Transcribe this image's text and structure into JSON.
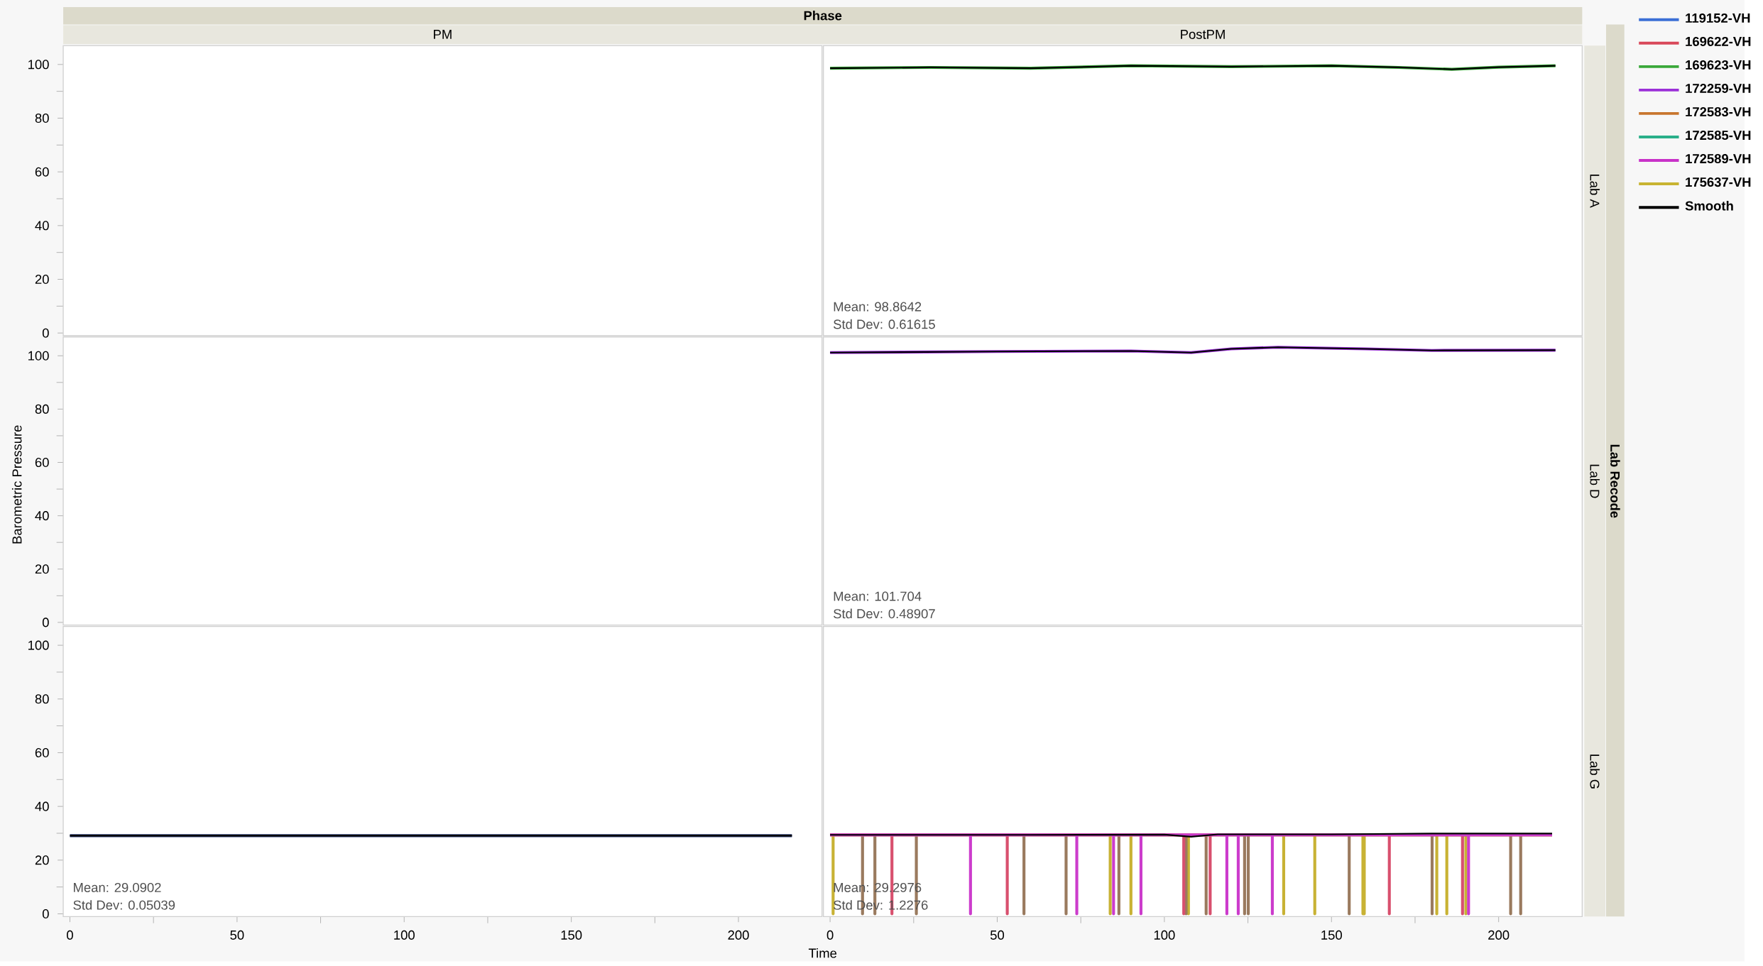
{
  "chart_data": [
    {
      "type": "line",
      "xlim": [
        -2,
        225
      ],
      "ylim": [
        -1,
        107
      ],
      "xticks": [
        0,
        50,
        100,
        150,
        200
      ],
      "yticks": [
        0,
        20,
        40,
        60,
        80,
        100
      ],
      "tick_labels": "y"
    },
    {
      "type": "line",
      "xlim": [
        -2,
        225
      ],
      "ylim": [
        -1,
        107
      ],
      "xticks": [
        0,
        50,
        100,
        150,
        200
      ],
      "yticks": [
        0,
        20,
        40,
        60,
        80,
        100
      ],
      "tick_labels": false,
      "legend": "top right",
      "annotations": [
        "Mean: 98.8642",
        "Std Dev: 0.61615"
      ],
      "series": [
        {
          "name": "119152-VH",
          "color": "#3b6fd6",
          "values": [
            null
          ]
        },
        {
          "name": "169622-VH",
          "color": "#d9485a",
          "values": [
            null
          ]
        },
        {
          "name": "169623-VH",
          "color": "#3aa83a",
          "x": [
            0,
            30,
            60,
            90,
            120,
            150,
            170,
            186,
            200,
            217
          ],
          "values": [
            98.6,
            98.9,
            98.6,
            99.5,
            99.2,
            99.5,
            98.9,
            98.2,
            99.0,
            99.5
          ]
        },
        {
          "name": "172259-VH",
          "color": "#9b30d8",
          "values": [
            null
          ]
        },
        {
          "name": "172583-VH",
          "color": "#c8762e",
          "values": [
            null
          ]
        },
        {
          "name": "172585-VH",
          "color": "#2ab08a",
          "values": [
            null
          ]
        },
        {
          "name": "172589-VH",
          "color": "#c832c8",
          "values": [
            null
          ]
        },
        {
          "name": "175637-VH",
          "color": "#c8b432",
          "values": [
            null
          ]
        },
        {
          "name": "Smooth",
          "color": "#000000",
          "x": [
            0,
            30,
            60,
            90,
            120,
            150,
            170,
            186,
            200,
            217
          ],
          "values": [
            98.6,
            98.9,
            98.6,
            99.5,
            99.2,
            99.5,
            98.9,
            98.2,
            99.0,
            99.5
          ]
        }
      ]
    },
    {
      "type": "line",
      "xlim": [
        -2,
        225
      ],
      "ylim": [
        -1,
        107
      ],
      "xticks": [
        0,
        50,
        100,
        150,
        200
      ],
      "yticks": [
        0,
        20,
        40,
        60,
        80,
        100
      ],
      "tick_labels": "y"
    },
    {
      "type": "line",
      "xlim": [
        -2,
        225
      ],
      "ylim": [
        -1,
        107
      ],
      "xticks": [
        0,
        50,
        100,
        150,
        200
      ],
      "yticks": [
        0,
        20,
        40,
        60,
        80,
        100
      ],
      "tick_labels": false,
      "annotations": [
        "Mean: 101.704",
        "Std Dev: 0.48907"
      ],
      "series": [
        {
          "color": "#9b30d8",
          "x": [
            0,
            50,
            90,
            108,
            120,
            134,
            160,
            180,
            217
          ],
          "values": [
            101.2,
            101.6,
            101.8,
            101.2,
            102.6,
            103.2,
            102.6,
            102.0,
            102.1
          ]
        },
        {
          "color": "#000000",
          "x": [
            0,
            50,
            90,
            108,
            120,
            134,
            160,
            180,
            217
          ],
          "values": [
            101.2,
            101.6,
            101.8,
            101.2,
            102.6,
            103.2,
            102.6,
            102.0,
            102.1
          ]
        }
      ]
    },
    {
      "type": "line",
      "xlim": [
        -2,
        225
      ],
      "ylim": [
        -1,
        107
      ],
      "xticks": [
        0,
        50,
        100,
        150,
        200
      ],
      "yticks": [
        0,
        20,
        40,
        60,
        80,
        100
      ],
      "annotations": [
        "Mean: 29.0902",
        "Std Dev: 0.05039"
      ],
      "series": [
        {
          "color": "#2a3a6e",
          "x": [
            0,
            216
          ],
          "values": [
            29.1,
            29.1
          ]
        },
        {
          "color": "#000000",
          "x": [
            0,
            216
          ],
          "values": [
            29.1,
            29.1
          ]
        }
      ]
    },
    {
      "type": "line",
      "xlim": [
        -2,
        225
      ],
      "ylim": [
        -1,
        107
      ],
      "xticks": [
        0,
        50,
        100,
        150,
        200
      ],
      "yticks": [
        0,
        20,
        40,
        60,
        80,
        100
      ],
      "tick_labels": "x",
      "annotations": [
        "Mean: 29.2976",
        "Std Dev: 1.2276"
      ],
      "series": [
        {
          "color": "#c8b234",
          "x": [
            0,
            0.9,
            0.9,
            0.9,
            83.8,
            83.8,
            83.8,
            90,
            90,
            90,
            107.2,
            107.2,
            107.2,
            135.7,
            135.7,
            135.7,
            145,
            145,
            145,
            159.4,
            159.4,
            159.4,
            159.8,
            159.8,
            159.8,
            181.5,
            181.5,
            181.5,
            184.5,
            184.5,
            184.5,
            190.2,
            190.2,
            190.2,
            216
          ],
          "values": [
            29.4,
            29.4,
            0,
            29.4,
            29.4,
            0,
            29.4,
            29.4,
            0,
            29.4,
            29.4,
            0,
            29.4,
            29.4,
            0,
            29.4,
            29.4,
            0,
            29.4,
            29.4,
            0,
            29.4,
            29.4,
            0,
            29.4,
            29.4,
            0,
            29.4,
            29.4,
            0,
            29.4,
            29.4,
            0,
            29.4,
            29.4
          ]
        },
        {
          "color": "#9a7a5e",
          "x": [
            0,
            9.7,
            9.7,
            9.7,
            13.4,
            13.4,
            13.4,
            25.8,
            25.8,
            25.8,
            58,
            58,
            58,
            70.6,
            70.6,
            70.6,
            86.4,
            86.4,
            86.4,
            106.5,
            106.5,
            106.5,
            112.5,
            112.5,
            112.5,
            124,
            124,
            124,
            125.1,
            125.1,
            125.1,
            155.3,
            155.3,
            155.3,
            180.1,
            180.1,
            180.1,
            203.6,
            203.6,
            203.6,
            206.6,
            206.6,
            206.6,
            216
          ],
          "values": [
            29.4,
            29.4,
            0,
            29.4,
            29.4,
            0,
            29.4,
            29.4,
            0,
            29.4,
            29.4,
            0,
            29.4,
            29.4,
            0,
            29.4,
            29.4,
            0,
            29.4,
            29.4,
            0,
            29.4,
            29.4,
            0,
            29.4,
            29.4,
            0,
            29.4,
            29.4,
            0,
            29.4,
            29.4,
            0,
            29.4,
            29.4,
            0,
            29.4,
            29.4,
            0,
            29.4,
            29.4,
            0,
            29.4,
            29.4
          ]
        },
        {
          "color": "#d8506e",
          "x": [
            0,
            18.5,
            18.5,
            18.5,
            53,
            53,
            53,
            105.8,
            105.8,
            105.8,
            113.7,
            113.7,
            113.7,
            167.3,
            167.3,
            167.3,
            189.2,
            189.2,
            189.2,
            216
          ],
          "values": [
            29.4,
            29.4,
            0,
            29.4,
            29.4,
            0,
            29.4,
            29.4,
            0,
            29.4,
            29.4,
            0,
            29.4,
            29.4,
            0,
            29.4,
            29.4,
            0,
            29.4,
            29.4
          ]
        },
        {
          "color": "#cc3ccc",
          "x": [
            0,
            42,
            42,
            42,
            73.8,
            73.8,
            73.8,
            84.8,
            84.8,
            84.8,
            93,
            93,
            93,
            118.7,
            118.7,
            118.7,
            122.1,
            122.1,
            122.1,
            132.3,
            132.3,
            132.3,
            191,
            191,
            191,
            216
          ],
          "values": [
            29.4,
            29.4,
            0,
            29.4,
            29.4,
            0,
            29.4,
            29.4,
            0,
            29.4,
            29.4,
            0,
            29.4,
            29.4,
            0,
            29.4,
            29.4,
            0,
            29.4,
            29.4,
            0,
            29.4,
            29.4,
            0,
            29.4,
            29.4
          ]
        },
        {
          "color": "#000000",
          "x": [
            0,
            60,
            100,
            108,
            116,
            150,
            180,
            216
          ],
          "values": [
            29.4,
            29.4,
            29.5,
            28.7,
            29.6,
            29.6,
            29.9,
            29.9
          ]
        }
      ]
    },
    {
      "type": "other",
      "title": "Phase",
      "xlabel": "Time",
      "ylabel": "Barometric Pressure",
      "annotations": [
        "PM",
        "PostPM",
        "Lab A",
        "Lab D",
        "Lab G",
        "Lab Recode"
      ]
    }
  ]
}
